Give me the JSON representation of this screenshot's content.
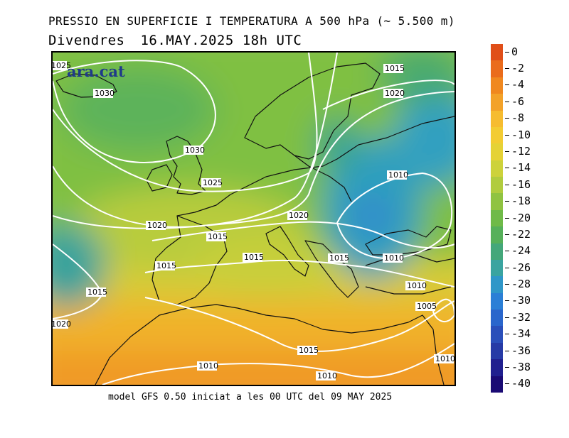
{
  "header": {
    "title_line1": "PRESSIO EN SUPERFICIE I TEMPERATURA A 500 hPa (~ 5.500 m)",
    "day": "Divendres",
    "datetime": "16.MAY.2025 18h UTC"
  },
  "logo_text": "ara.cat",
  "footer": "model GFS 0.50 iniciat a les 00 UTC del 09 MAY 2025",
  "colorbar": {
    "labels": [
      "0",
      "-2",
      "-4",
      "-6",
      "-8",
      "-10",
      "-12",
      "-14",
      "-16",
      "-18",
      "-20",
      "-22",
      "-24",
      "-26",
      "-28",
      "-30",
      "-32",
      "-34",
      "-36",
      "-38",
      "-40"
    ],
    "colors": [
      "#e04e18",
      "#ea6c1c",
      "#f0881f",
      "#f3a229",
      "#f6bc30",
      "#f3cc32",
      "#e5d236",
      "#cdd23a",
      "#b1cc3e",
      "#90c341",
      "#6fba48",
      "#56b05a",
      "#44a77a",
      "#3aa4a0",
      "#2f97c8",
      "#2b7fd6",
      "#2a66cc",
      "#2a4fba",
      "#263aa6",
      "#201f8f",
      "#1a0a74"
    ]
  },
  "isobar_labels": [
    "1030",
    "1030",
    "1025",
    "1020",
    "1015",
    "1015",
    "1015",
    "1015",
    "1015",
    "1015",
    "1010",
    "1010",
    "1010",
    "1010",
    "1010",
    "1010",
    "1005",
    "1020",
    "1015",
    "1020",
    "1020",
    "1025"
  ],
  "colors": {
    "isobar": "#ffffff",
    "coast": "#111111"
  }
}
